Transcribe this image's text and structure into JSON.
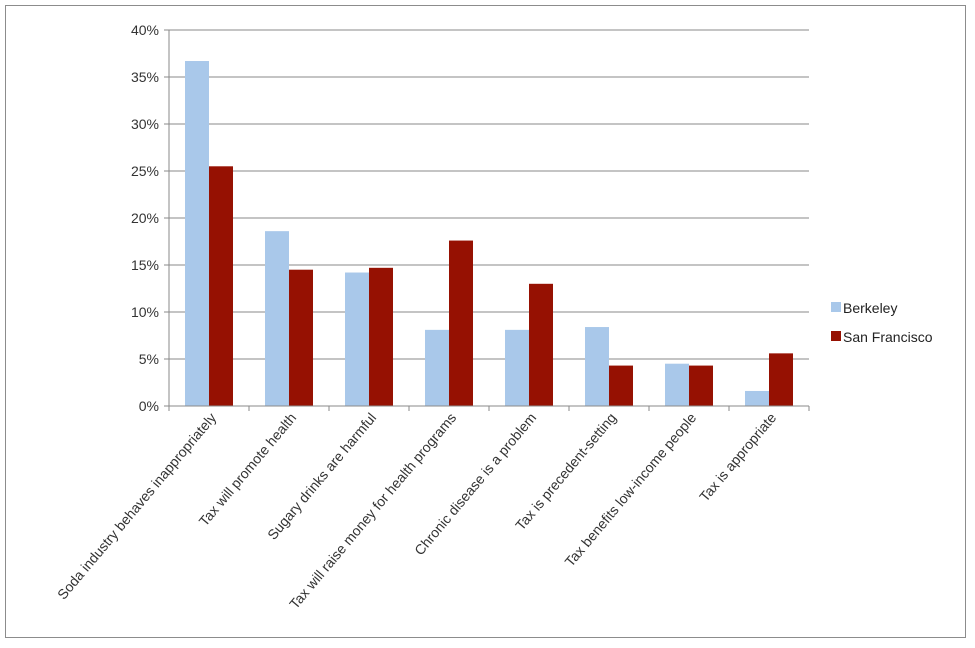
{
  "chart_data": {
    "type": "bar",
    "title": "",
    "xlabel": "",
    "ylabel": "",
    "ylim": [
      0,
      40
    ],
    "y_ticks": [
      "0%",
      "5%",
      "10%",
      "15%",
      "20%",
      "25%",
      "30%",
      "35%",
      "40%"
    ],
    "grid": true,
    "legend_position": "right",
    "categories": [
      "Soda industry behaves inappropriately",
      "Tax will promote health",
      "Sugary drinks are harmful",
      "Tax will raise money for health programs",
      "Chronic disease is a problem",
      "Tax is precedent-setting",
      "Tax benefits low-income people",
      "Tax is appropriate"
    ],
    "series": [
      {
        "name": "Berkeley",
        "color": "#a9c8ea",
        "values": [
          36.7,
          18.6,
          14.2,
          8.1,
          8.1,
          8.4,
          4.5,
          1.6
        ]
      },
      {
        "name": "San Francisco",
        "color": "#961102",
        "values": [
          25.5,
          14.5,
          14.7,
          17.6,
          13.0,
          4.3,
          4.3,
          5.6
        ]
      }
    ]
  }
}
